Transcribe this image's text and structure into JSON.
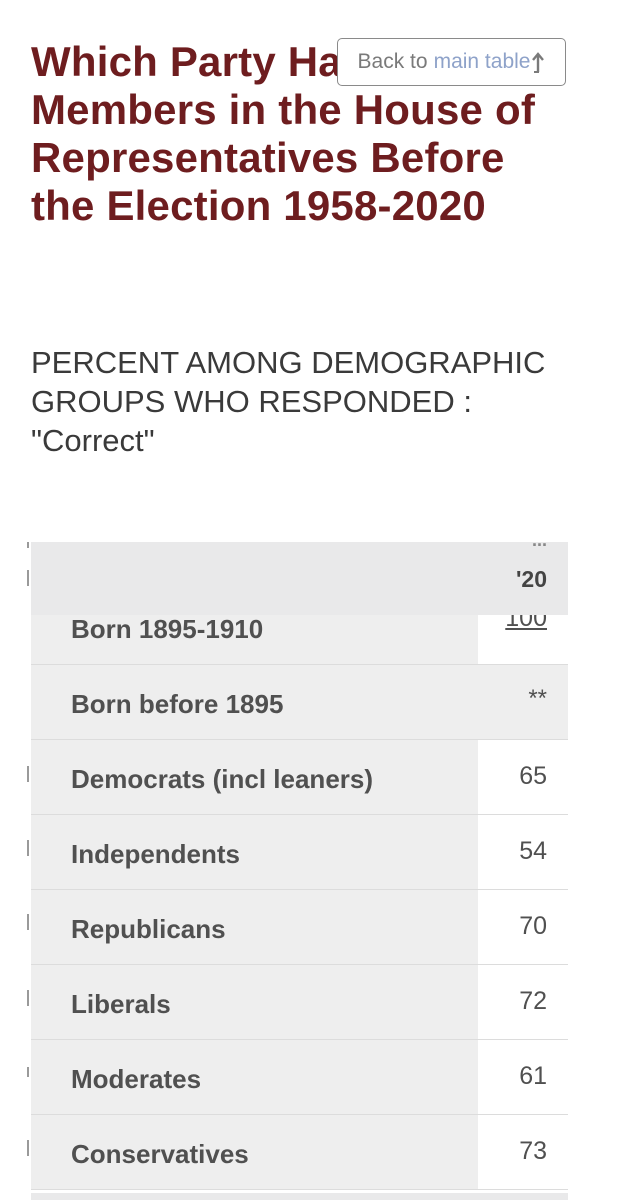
{
  "page": {
    "title": "Which Party Had Most Members in the House of Representatives Before the Election 1958-2020",
    "subtitle": "PERCENT AMONG DEMOGRAPHIC GROUPS WHO RESPONDED : \"Correct\""
  },
  "back_button": {
    "prefix": "Back to",
    "link": "main table",
    "icon": "arrow-up-icon"
  },
  "table": {
    "header_year": "'20",
    "header_partial": "...",
    "rows": [
      {
        "label": "Born 1895-1910",
        "value": "100"
      },
      {
        "label": "Born before 1895",
        "value": "**"
      },
      {
        "label": "Democrats (incl leaners)",
        "value": "65"
      },
      {
        "label": "Independents",
        "value": "54"
      },
      {
        "label": "Republicans",
        "value": "70"
      },
      {
        "label": "Liberals",
        "value": "72"
      },
      {
        "label": "Moderates",
        "value": "61"
      },
      {
        "label": "Conservatives",
        "value": "73"
      }
    ]
  },
  "colors": {
    "title": "#6e1d1f",
    "link": "#8ea2c9",
    "row_label_bg": "#eeeeee",
    "header_bg": "#e9e9ea"
  }
}
